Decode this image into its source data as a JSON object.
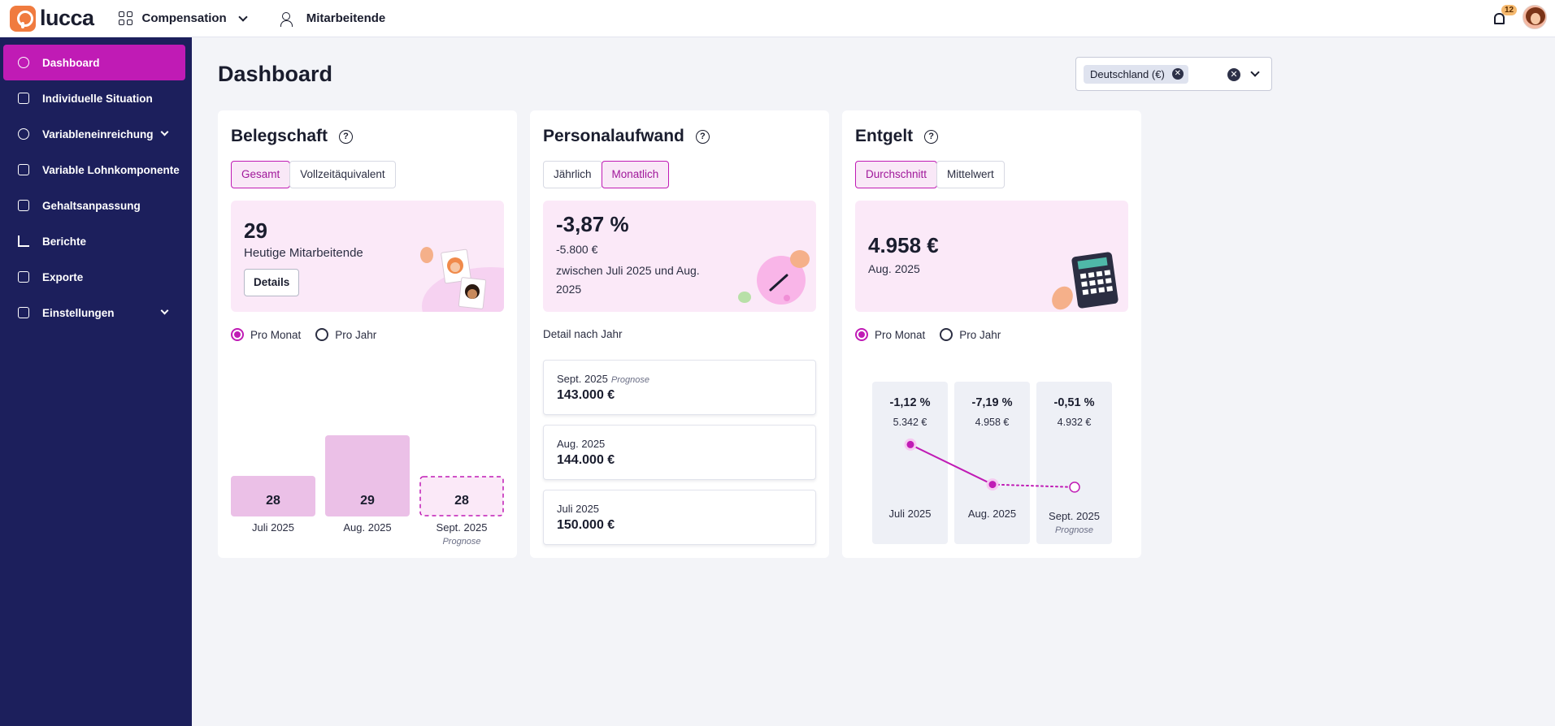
{
  "topbar": {
    "logo_text": "lucca",
    "app_name": "Compensation",
    "employees_link": "Mitarbeitende",
    "notification_count": "12"
  },
  "sidebar": {
    "items": [
      {
        "label": "Dashboard",
        "icon": "gauge-icon",
        "active": true
      },
      {
        "label": "Individuelle Situation",
        "icon": "sliders-icon"
      },
      {
        "label": "Variableneinreichung",
        "icon": "piggy-icon",
        "expandable": true
      },
      {
        "label": "Variable Lohnkomponente",
        "icon": "wallet-icon"
      },
      {
        "label": "Gehaltsanpassung",
        "icon": "clipboard-icon"
      },
      {
        "label": "Berichte",
        "icon": "bar-chart-icon"
      },
      {
        "label": "Exporte",
        "icon": "export-icon"
      },
      {
        "label": "Einstellungen",
        "icon": "tools-icon",
        "expandable": true
      }
    ]
  },
  "page": {
    "title": "Dashboard",
    "country_filter": {
      "chip": "Deutschland (€)"
    }
  },
  "belegschaft": {
    "title": "Belegschaft",
    "tabs": [
      "Gesamt",
      "Vollzeitäquivalent"
    ],
    "selected_tab": 0,
    "hero_value": "29",
    "hero_label": "Heutige Mitarbeitende",
    "details_button": "Details",
    "radio": [
      "Pro Monat",
      "Pro Jahr"
    ],
    "radio_selected": 0
  },
  "personalaufwand": {
    "title": "Personalaufwand",
    "tabs": [
      "Jährlich",
      "Monatlich"
    ],
    "selected_tab": 1,
    "hero_pct": "-3,87 %",
    "hero_abs": "-5.800 €",
    "hero_desc": "zwischen Juli 2025 und Aug. 2025",
    "detail_caption": "Detail nach Jahr",
    "years": [
      {
        "label": "Sept. 2025",
        "tag": "Prognose",
        "value": "143.000 €"
      },
      {
        "label": "Aug. 2025",
        "tag": "",
        "value": "144.000 €"
      },
      {
        "label": "Juli 2025",
        "tag": "",
        "value": "150.000 €"
      }
    ]
  },
  "entgelt": {
    "title": "Entgelt",
    "tabs": [
      "Durchschnitt",
      "Mittelwert"
    ],
    "selected_tab": 0,
    "hero_value": "4.958 €",
    "hero_label": "Aug. 2025",
    "radio": [
      "Pro Monat",
      "Pro Jahr"
    ],
    "radio_selected": 0,
    "columns": [
      {
        "pct": "-1,12 %",
        "abs": "5.342 €",
        "label": "Juli 2025",
        "tag": ""
      },
      {
        "pct": "-7,19 %",
        "abs": "4.958 €",
        "label": "Aug. 2025",
        "tag": ""
      },
      {
        "pct": "-0,51 %",
        "abs": "4.932 €",
        "label": "Sept. 2025",
        "tag": "Prognose"
      }
    ]
  },
  "chart_data": [
    {
      "type": "bar",
      "title": "Belegschaft",
      "categories": [
        "Juli 2025",
        "Aug. 2025",
        "Sept. 2025"
      ],
      "values": [
        28,
        29,
        28
      ],
      "forecast": [
        false,
        false,
        true
      ],
      "forecast_label": "Prognose"
    },
    {
      "type": "line",
      "title": "Entgelt",
      "categories": [
        "Juli 2025",
        "Aug. 2025",
        "Sept. 2025"
      ],
      "values": [
        5342,
        4958,
        4932
      ],
      "forecast": [
        false,
        false,
        true
      ]
    }
  ],
  "colors": {
    "accent": "#c01bb5",
    "sidebar_bg": "#1c1f5c",
    "hero_bg": "#fbe9f8",
    "bar_fill": "#ebc0e7"
  }
}
